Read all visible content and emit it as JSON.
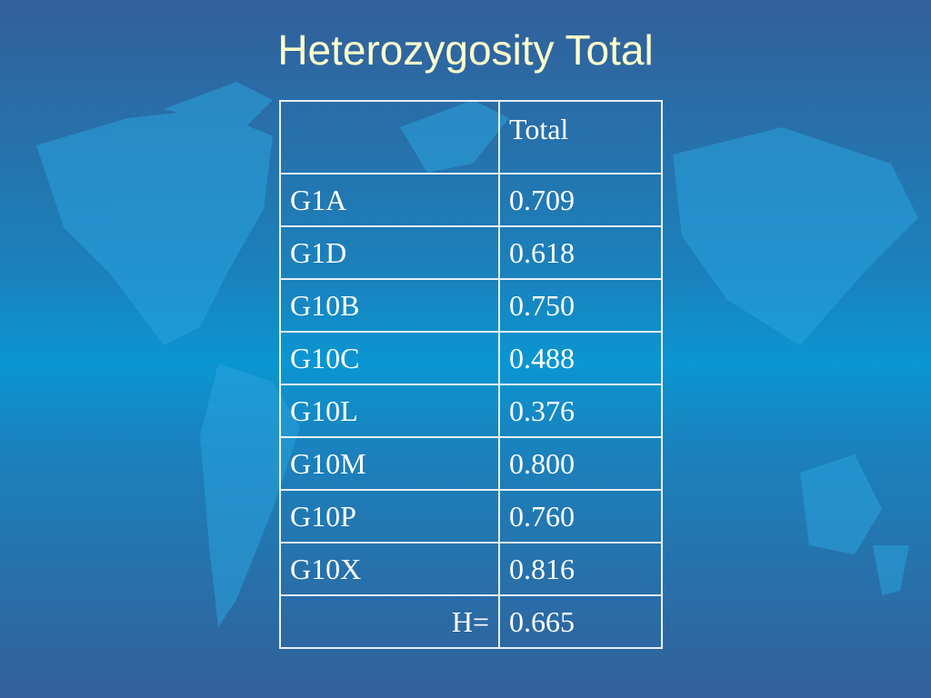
{
  "title": "Heterozygosity Total",
  "table": {
    "header": [
      "Total"
    ],
    "rows": [
      [
        "G1A",
        "0.709"
      ],
      [
        "G1D",
        "0.618"
      ],
      [
        "G10B",
        "0.750"
      ],
      [
        "G10C",
        "0.488"
      ],
      [
        "G10L",
        "0.376"
      ],
      [
        "G10M",
        "0.800"
      ],
      [
        "G10P",
        "0.760"
      ],
      [
        "G10X",
        "0.816"
      ]
    ],
    "footer": [
      "H=",
      "0.665"
    ]
  }
}
